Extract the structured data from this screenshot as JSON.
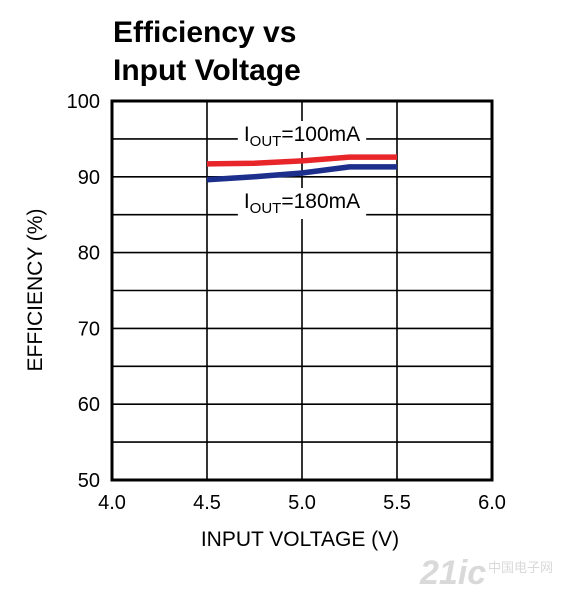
{
  "chart_data": {
    "type": "line",
    "title": "Efficiency vs\nInput Voltage",
    "xlabel": "INPUT VOLTAGE (V)",
    "ylabel": "EFFICIENCY (%)",
    "xlim": [
      4.0,
      6.0
    ],
    "ylim": [
      50,
      100
    ],
    "xticks": [
      "4.0",
      "4.5",
      "5.0",
      "5.5",
      "6.0"
    ],
    "yticks": [
      "50",
      "60",
      "70",
      "80",
      "90",
      "100"
    ],
    "grid": true,
    "series": [
      {
        "name": "IOUT=100mA",
        "label_main": "I",
        "label_sub": "OUT",
        "label_rest": "=100mA",
        "color": "#e8262a",
        "x": [
          4.5,
          4.75,
          5.0,
          5.25,
          5.5
        ],
        "y": [
          91.7,
          91.8,
          92.1,
          92.6,
          92.6
        ]
      },
      {
        "name": "IOUT=180mA",
        "label_main": "I",
        "label_sub": "OUT",
        "label_rest": "=180mA",
        "color": "#1c2f8c",
        "x": [
          4.5,
          4.75,
          5.0,
          5.25,
          5.5
        ],
        "y": [
          89.6,
          90.0,
          90.5,
          91.3,
          91.3
        ]
      }
    ]
  },
  "watermark": {
    "text": "21ic",
    "subtext": "中国电子网"
  }
}
